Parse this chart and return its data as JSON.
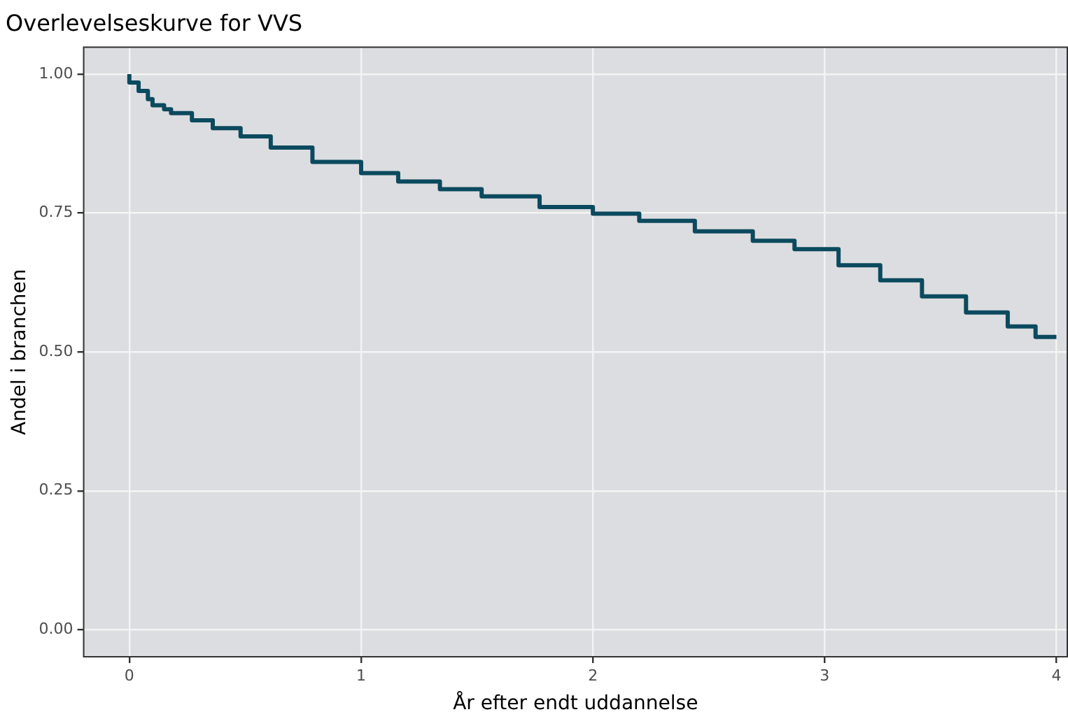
{
  "chart_data": {
    "type": "step",
    "title": "Overlevelseskurve for VVS",
    "xlabel": "År efter endt uddannelse",
    "ylabel": "Andel i branchen",
    "x": [
      0,
      0.04,
      0.08,
      0.1,
      0.15,
      0.18,
      0.27,
      0.36,
      0.48,
      0.61,
      0.79,
      1.0,
      1.16,
      1.34,
      1.52,
      1.77,
      2.0,
      2.2,
      2.44,
      2.69,
      2.87,
      3.06,
      3.24,
      3.42,
      3.61,
      3.79,
      3.91,
      4.0
    ],
    "series": [
      {
        "color": "#0b4a5e",
        "values": [
          1.0,
          0.985,
          0.97,
          0.955,
          0.944,
          0.937,
          0.93,
          0.917,
          0.903,
          0.888,
          0.868,
          0.842,
          0.822,
          0.807,
          0.793,
          0.78,
          0.761,
          0.749,
          0.736,
          0.717,
          0.7,
          0.685,
          0.656,
          0.629,
          0.6,
          0.571,
          0.546,
          0.527
        ]
      }
    ],
    "xlim": [
      -0.2,
      4.05
    ],
    "ylim": [
      -0.05,
      1.05
    ],
    "xticks": [
      0,
      1,
      2,
      3,
      4
    ],
    "yticks": [
      {
        "value": 0,
        "label": "0.00"
      },
      {
        "value": 0.25,
        "label": "0.25"
      },
      {
        "value": 0.5,
        "label": "0.50"
      },
      {
        "value": 0.75,
        "label": "0.75"
      },
      {
        "value": 1,
        "label": "1.00"
      }
    ],
    "grid": true,
    "legend": false,
    "marker": "none",
    "line_style": "solid"
  }
}
